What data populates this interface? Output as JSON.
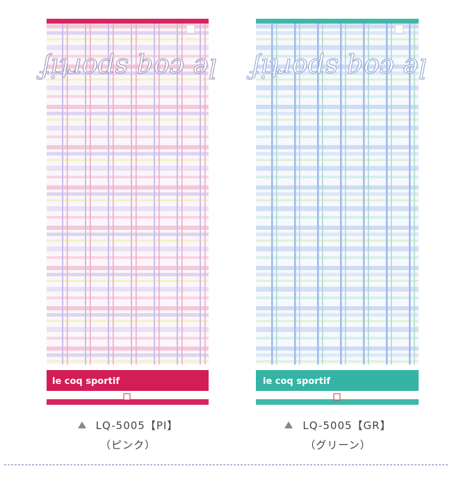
{
  "products": [
    {
      "code": "LQ-5005【PI】",
      "color_name": "（ピンク）",
      "brand": "le coq sportif"
    },
    {
      "code": "LQ-5005【GR】",
      "color_name": "（グリーン）",
      "brand": "le coq sportif"
    }
  ]
}
